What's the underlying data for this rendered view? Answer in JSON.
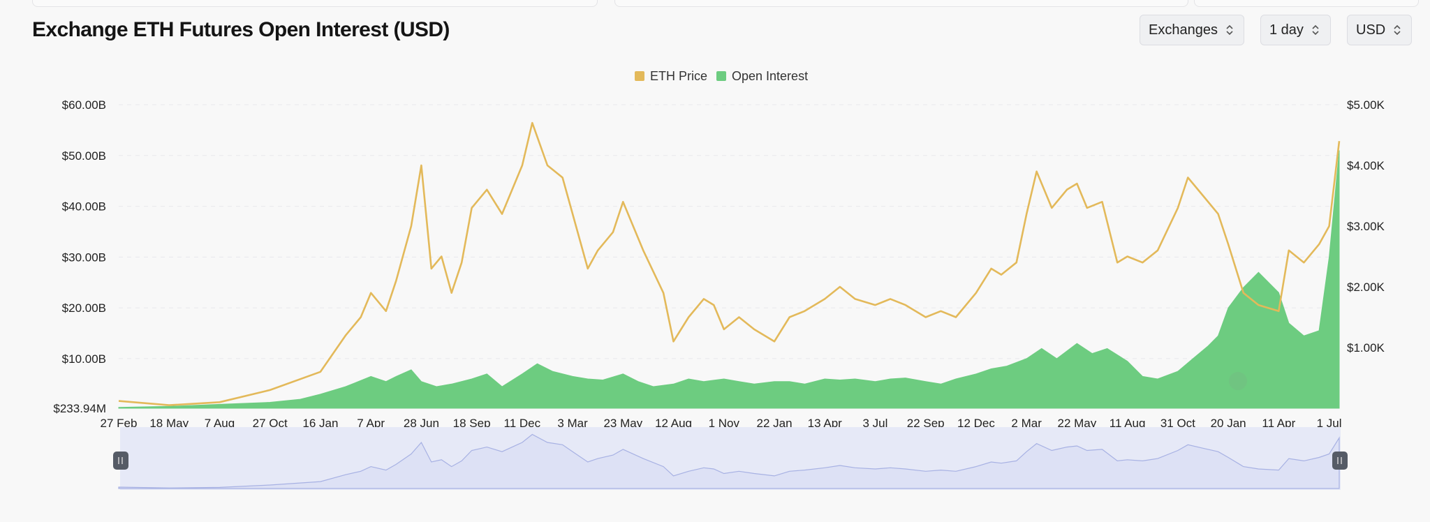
{
  "page": {
    "title": "Exchange ETH Futures Open Interest (USD)"
  },
  "controls": [
    {
      "name": "exchanges-select",
      "label": "Exchanges"
    },
    {
      "name": "interval-select",
      "label": "1 day"
    },
    {
      "name": "currency-select",
      "label": "USD"
    }
  ],
  "colors": {
    "price": "#e3b95a",
    "open_interest": "#6dcc80",
    "navigator_fill": "#dde1f5",
    "navigator_line": "#a7b1e3"
  },
  "chart_data": {
    "type": "line",
    "title": "Exchange ETH Futures Open Interest (USD)",
    "legend": {
      "position": "top-center",
      "entries": [
        "ETH Price",
        "Open Interest"
      ]
    },
    "grid": true,
    "x_ticks": [
      "27 Feb",
      "18 May",
      "7 Aug",
      "27 Oct",
      "16 Jan",
      "7 Apr",
      "28 Jun",
      "18 Sep",
      "11 Dec",
      "3 Mar",
      "23 May",
      "12 Aug",
      "1 Nov",
      "22 Jan",
      "13 Apr",
      "3 Jul",
      "22 Sep",
      "12 Dec",
      "2 Mar",
      "22 May",
      "11 Aug",
      "31 Oct",
      "20 Jan",
      "11 Apr",
      "1 Jul"
    ],
    "y_left": {
      "min": 0.23394,
      "max": 60,
      "unit": "B",
      "ticks": [
        "$233.94M",
        "$10.00B",
        "$20.00B",
        "$30.00B",
        "$40.00B",
        "$50.00B",
        "$60.00B"
      ]
    },
    "y_right": {
      "min": 0,
      "max": 5,
      "unit": "K",
      "ticks": [
        "$1.00K",
        "$2.00K",
        "$3.00K",
        "$4.00K",
        "$5.00K"
      ]
    },
    "series": [
      {
        "name": "ETH Price",
        "axis": "right",
        "chart": "line",
        "unit": "thousand USD",
        "x": [
          0,
          1,
          2,
          3,
          4,
          4.5,
          4.8,
          5,
          5.3,
          5.5,
          5.8,
          6,
          6.2,
          6.4,
          6.6,
          6.8,
          7,
          7.3,
          7.6,
          8,
          8.2,
          8.5,
          8.8,
          9,
          9.3,
          9.5,
          9.8,
          10,
          10.4,
          10.8,
          11,
          11.3,
          11.6,
          11.8,
          12,
          12.3,
          12.6,
          13,
          13.3,
          13.6,
          14,
          14.3,
          14.6,
          15,
          15.3,
          15.6,
          16,
          16.3,
          16.6,
          17,
          17.3,
          17.5,
          17.8,
          18,
          18.2,
          18.5,
          18.8,
          19,
          19.2,
          19.5,
          19.8,
          20,
          20.3,
          20.6,
          21,
          21.2,
          21.5,
          21.8,
          22,
          22.3,
          22.6,
          23,
          23.2,
          23.5,
          23.8,
          24,
          24.2
        ],
        "y": [
          0.12,
          0.05,
          0.1,
          0.3,
          0.6,
          1.2,
          1.5,
          1.9,
          1.6,
          2.1,
          3.0,
          4.0,
          2.3,
          2.5,
          1.9,
          2.4,
          3.3,
          3.6,
          3.2,
          4.0,
          4.7,
          4.0,
          3.8,
          3.2,
          2.3,
          2.6,
          2.9,
          3.4,
          2.6,
          1.9,
          1.1,
          1.5,
          1.8,
          1.7,
          1.3,
          1.5,
          1.3,
          1.1,
          1.5,
          1.6,
          1.8,
          2.0,
          1.8,
          1.7,
          1.8,
          1.7,
          1.5,
          1.6,
          1.5,
          1.9,
          2.3,
          2.2,
          2.4,
          3.2,
          3.9,
          3.3,
          3.6,
          3.7,
          3.3,
          3.4,
          2.4,
          2.5,
          2.4,
          2.6,
          3.3,
          3.8,
          3.5,
          3.2,
          2.7,
          1.9,
          1.7,
          1.6,
          2.6,
          2.4,
          2.7,
          3.0,
          4.4
        ]
      },
      {
        "name": "Open Interest",
        "axis": "left",
        "chart": "area",
        "unit": "billion USD",
        "x": [
          0,
          1,
          2,
          3,
          3.6,
          4,
          4.5,
          5,
          5.3,
          5.5,
          5.8,
          6,
          6.3,
          6.6,
          7,
          7.3,
          7.6,
          8,
          8.3,
          8.6,
          9,
          9.3,
          9.6,
          10,
          10.3,
          10.6,
          11,
          11.3,
          11.6,
          12,
          12.3,
          12.6,
          13,
          13.3,
          13.6,
          14,
          14.3,
          14.6,
          15,
          15.3,
          15.6,
          16,
          16.3,
          16.6,
          17,
          17.3,
          17.6,
          18,
          18.3,
          18.6,
          19,
          19.3,
          19.6,
          20,
          20.3,
          20.6,
          21,
          21.3,
          21.6,
          21.8,
          22,
          22.3,
          22.6,
          23,
          23.2,
          23.5,
          23.8,
          24,
          24.2
        ],
        "y": [
          0.4,
          0.6,
          1.0,
          1.4,
          2.0,
          3.0,
          4.5,
          6.5,
          5.5,
          6.5,
          7.8,
          5.5,
          4.5,
          5.0,
          6.0,
          7.0,
          4.5,
          7.0,
          9.0,
          7.5,
          6.5,
          6.0,
          5.8,
          7.0,
          5.5,
          4.5,
          5.0,
          6.0,
          5.5,
          6.0,
          5.5,
          5.0,
          5.5,
          5.5,
          5.0,
          6.0,
          5.8,
          6.0,
          5.5,
          6.0,
          6.2,
          5.5,
          5.0,
          6.0,
          7.0,
          8.0,
          8.5,
          10.0,
          12.0,
          10.0,
          13.0,
          11.0,
          12.0,
          9.5,
          6.5,
          6.0,
          7.5,
          10.0,
          12.5,
          14.5,
          20.0,
          24.0,
          27.0,
          23.0,
          17.0,
          14.5,
          15.5,
          30.0,
          51.0
        ]
      }
    ]
  }
}
